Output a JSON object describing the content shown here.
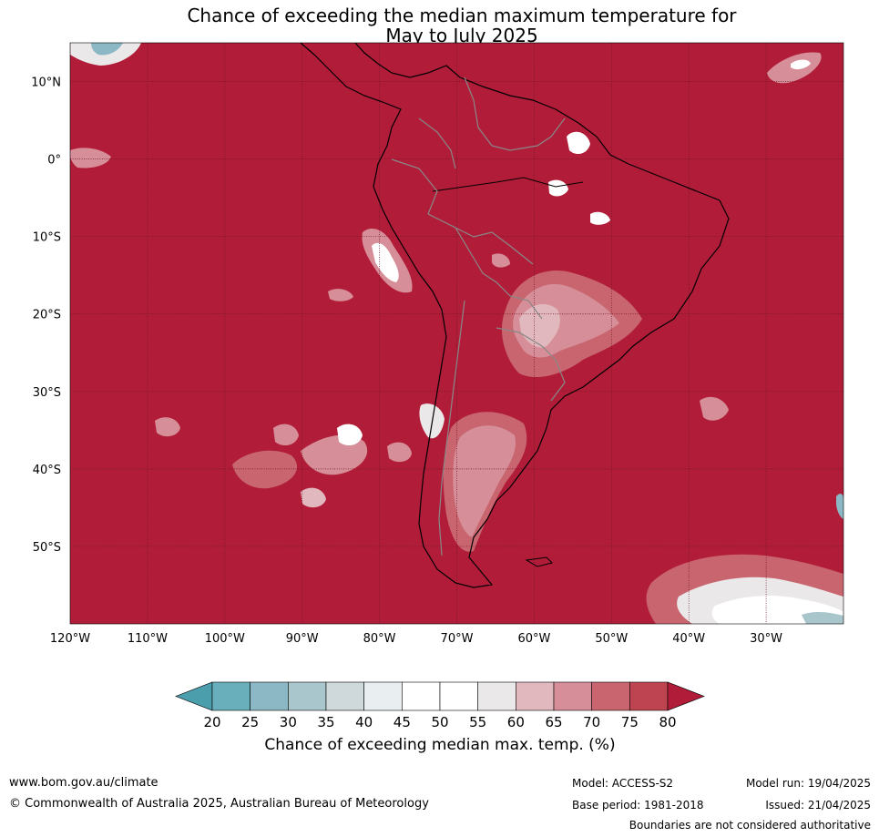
{
  "title_line1": "Chance of exceeding the median maximum temperature for",
  "title_line2": "May to July 2025",
  "map": {
    "background_color": "#b11d39",
    "lat_ticks": [
      {
        "value": 10,
        "label": "10°N"
      },
      {
        "value": 0,
        "label": "0°"
      },
      {
        "value": -10,
        "label": "10°S"
      },
      {
        "value": -20,
        "label": "20°S"
      },
      {
        "value": -30,
        "label": "30°S"
      },
      {
        "value": -40,
        "label": "40°S"
      },
      {
        "value": -50,
        "label": "50°S"
      }
    ],
    "lon_ticks": [
      {
        "value": -120,
        "label": "120°W"
      },
      {
        "value": -110,
        "label": "110°W"
      },
      {
        "value": -100,
        "label": "100°W"
      },
      {
        "value": -90,
        "label": "90°W"
      },
      {
        "value": -80,
        "label": "80°W"
      },
      {
        "value": -70,
        "label": "70°W"
      },
      {
        "value": -60,
        "label": "60°W"
      },
      {
        "value": -50,
        "label": "50°W"
      },
      {
        "value": -40,
        "label": "40°W"
      },
      {
        "value": -30,
        "label": "30°W"
      }
    ],
    "lon_range": [
      -120,
      -20
    ],
    "lat_range": [
      -60,
      15
    ]
  },
  "colorbar": {
    "title": "Chance of exceeding median max. temp. (%)",
    "ticks": [
      "20",
      "25",
      "30",
      "35",
      "40",
      "45",
      "50",
      "55",
      "60",
      "65",
      "70",
      "75",
      "80"
    ],
    "under_color": "#4b9eab",
    "over_color": "#b11d39",
    "bin_colors": [
      "#68aebb",
      "#8bb8c4",
      "#a9c6cc",
      "#cfd9dc",
      "#e9eff1",
      "#ffffff",
      "#ffffff",
      "#ebe8e9",
      "#e2b8bf",
      "#d68e98",
      "#c8656f",
      "#bf4452"
    ]
  },
  "footer": {
    "website": "www.bom.gov.au/climate",
    "copyright": "© Commonwealth of Australia 2025, Australian Bureau of Meteorology",
    "model": "Model: ACCESS-S2",
    "base_period": "Base period: 1981-2018",
    "model_run": "Model run: 19/04/2025",
    "issued": "Issued: 21/04/2025",
    "boundaries": "Boundaries are not considered authoritative"
  }
}
